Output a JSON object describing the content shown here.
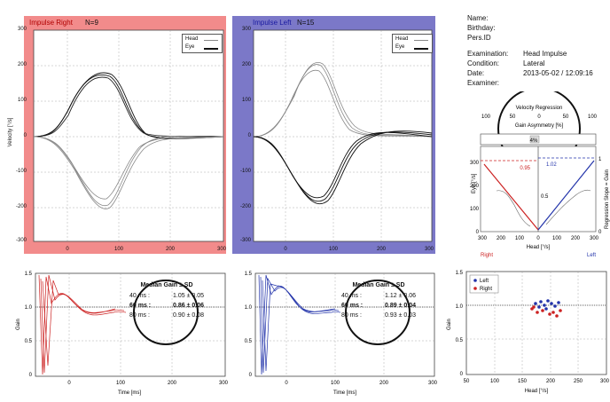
{
  "impulse_right": {
    "title": "Impulse Right",
    "count": "N=9"
  },
  "impulse_left": {
    "title": "Impulse Left",
    "count": "N=15"
  },
  "legend": {
    "head": "Head",
    "eye": "Eye"
  },
  "velocity_axis": {
    "ylabel": "Velocity [°/s]",
    "yticks": [
      "300",
      "200",
      "100",
      "0",
      "-100",
      "-200",
      "-300"
    ],
    "xticks": [
      "0",
      "100",
      "200",
      "300"
    ]
  },
  "patient": {
    "name_label": "Name:",
    "birthday_label": "Birthday:",
    "pers_id_label": "Pers.ID",
    "examination_label": "Examination:",
    "examination_value": "Head Impulse",
    "condition_label": "Condition:",
    "condition_value": "Lateral",
    "date_label": "Date:",
    "date_value": "2013-05-02 / 12:09:16",
    "examiner_label": "Examiner:"
  },
  "regression": {
    "title": "Velocity Regression",
    "asym_label": "Gain Asymmetry [%]",
    "asym_ticks": [
      "100",
      "50",
      "0",
      "50",
      "100"
    ],
    "asym_value": "4%",
    "right_gain": "0.95",
    "left_gain": "1.02",
    "eye_label": "Eye [°/s]",
    "slope_label": "Regression Slope = Gain",
    "head_label": "Head [°/s]",
    "x_ticks": [
      "300",
      "200",
      "100",
      "0",
      "100",
      "200",
      "300"
    ],
    "y_ticks": [
      "300",
      "200",
      "100",
      "0"
    ],
    "y_right_ticks": [
      "1",
      "0.5",
      "0"
    ],
    "right_label": "Right",
    "left_label": "Left"
  },
  "gain_axis": {
    "ylabel": "Gain",
    "yticks": [
      "1.5",
      "1.0",
      "0.5",
      "0"
    ],
    "xticks": [
      "0",
      "100",
      "200",
      "300"
    ],
    "xlabel": "Time [ms]"
  },
  "median_right": {
    "title": "Median Gain ± SD",
    "rows": [
      {
        "t": "40 ms :",
        "v": "1.05 ± 0.05"
      },
      {
        "t": "60 ms :",
        "v": "0.86 ± 0.06"
      },
      {
        "t": "80 ms :",
        "v": "0.90 ± 0.08"
      }
    ]
  },
  "median_left": {
    "title": "Median Gain ± SD",
    "rows": [
      {
        "t": "40 ms :",
        "v": "1.12 ± 0.06"
      },
      {
        "t": "60 ms :",
        "v": "0.89 ± 0.04"
      },
      {
        "t": "80 ms :",
        "v": "0.93 ± 0.03"
      }
    ]
  },
  "scatter": {
    "legend_left": "Left",
    "legend_right": "Right",
    "ylabel": "Gain",
    "xlabel": "Head [°/s]",
    "yticks": [
      "1.5",
      "1.0",
      "0.5",
      "0"
    ],
    "xticks": [
      "50",
      "100",
      "150",
      "200",
      "250",
      "300"
    ]
  },
  "colors": {
    "red_panel": "#f28b8b",
    "blue_panel": "#7b78c8",
    "right_series": "#cc2222",
    "left_series": "#2233aa"
  }
}
